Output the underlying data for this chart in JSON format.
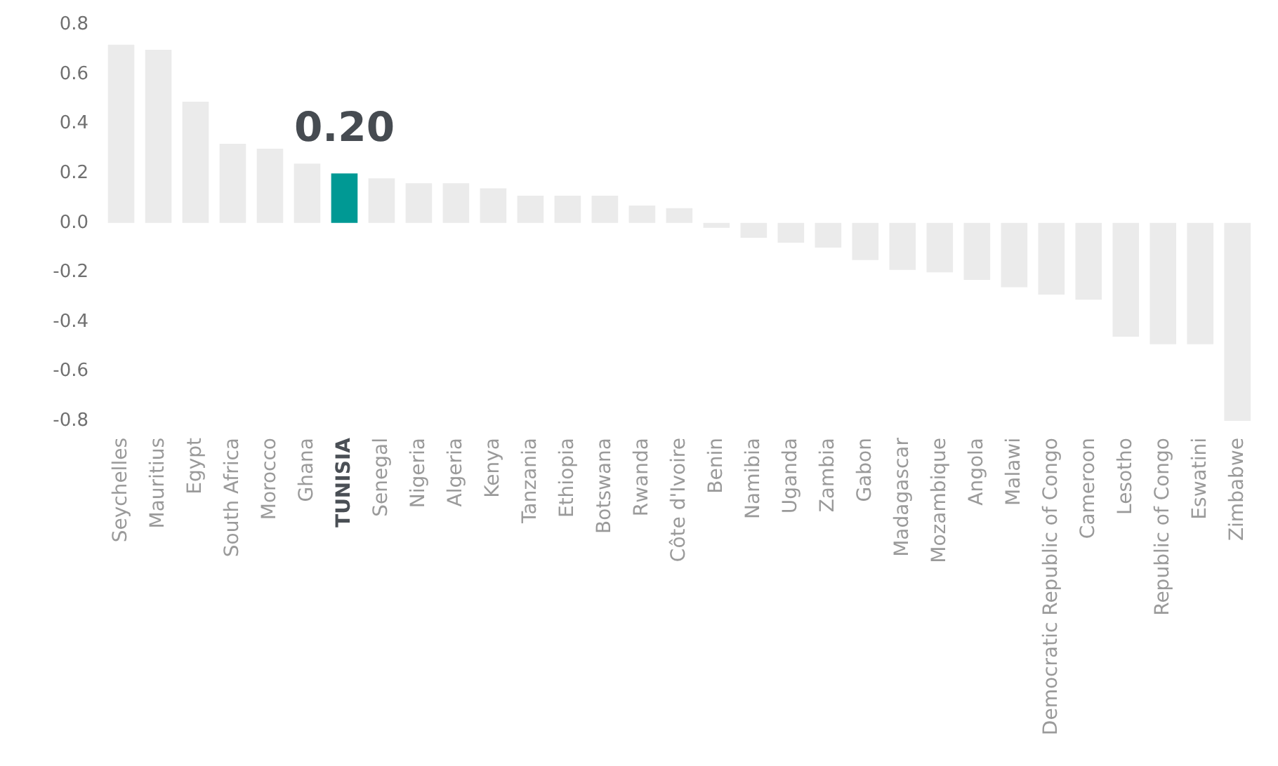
{
  "chart_data": {
    "type": "bar",
    "categories": [
      "Seychelles",
      "Mauritius",
      "Egypt",
      "South Africa",
      "Morocco",
      "Ghana",
      "TUNISIA",
      "Senegal",
      "Nigeria",
      "Algeria",
      "Kenya",
      "Tanzania",
      "Ethiopia",
      "Botswana",
      "Rwanda",
      "Côte d'Ivoire",
      "Benin",
      "Namibia",
      "Uganda",
      "Zambia",
      "Gabon",
      "Madagascar",
      "Mozambique",
      "Angola",
      "Malawi",
      "Democratic Republic of Congo",
      "Cameroon",
      "Lesotho",
      "Republic of Congo",
      "Eswatini",
      "Zimbabwe"
    ],
    "values": [
      0.72,
      0.7,
      0.49,
      0.32,
      0.3,
      0.24,
      0.2,
      0.18,
      0.16,
      0.16,
      0.14,
      0.11,
      0.11,
      0.11,
      0.07,
      0.06,
      -0.02,
      -0.06,
      -0.08,
      -0.1,
      -0.15,
      -0.19,
      -0.2,
      -0.23,
      -0.26,
      -0.29,
      -0.31,
      -0.46,
      -0.49,
      -0.49,
      -0.8
    ],
    "colors": [
      "#ebebeb",
      "#ebebeb",
      "#ebebeb",
      "#ebebeb",
      "#ebebeb",
      "#ebebeb",
      "#009994",
      "#ebebeb",
      "#ebebeb",
      "#ebebeb",
      "#ebebeb",
      "#ebebeb",
      "#ebebeb",
      "#ebebeb",
      "#ebebeb",
      "#ebebeb",
      "#ebebeb",
      "#ebebeb",
      "#ebebeb",
      "#ebebeb",
      "#ebebeb",
      "#ebebeb",
      "#ebebeb",
      "#ebebeb",
      "#ebebeb",
      "#ebebeb",
      "#ebebeb",
      "#ebebeb",
      "#ebebeb",
      "#ebebeb",
      "#ebebeb"
    ],
    "value_labels": [
      null,
      null,
      null,
      null,
      null,
      null,
      "0.20",
      null,
      null,
      null,
      null,
      null,
      null,
      null,
      null,
      null,
      null,
      null,
      null,
      null,
      null,
      null,
      null,
      null,
      null,
      null,
      null,
      null,
      null,
      null,
      null
    ],
    "ylim": [
      -0.8,
      0.8
    ],
    "yticks": [
      -0.8,
      -0.6,
      -0.4,
      -0.2,
      {
        "value": 0,
        "label": "0.0"
      },
      0.2,
      0.4,
      0.6,
      0.8
    ]
  }
}
